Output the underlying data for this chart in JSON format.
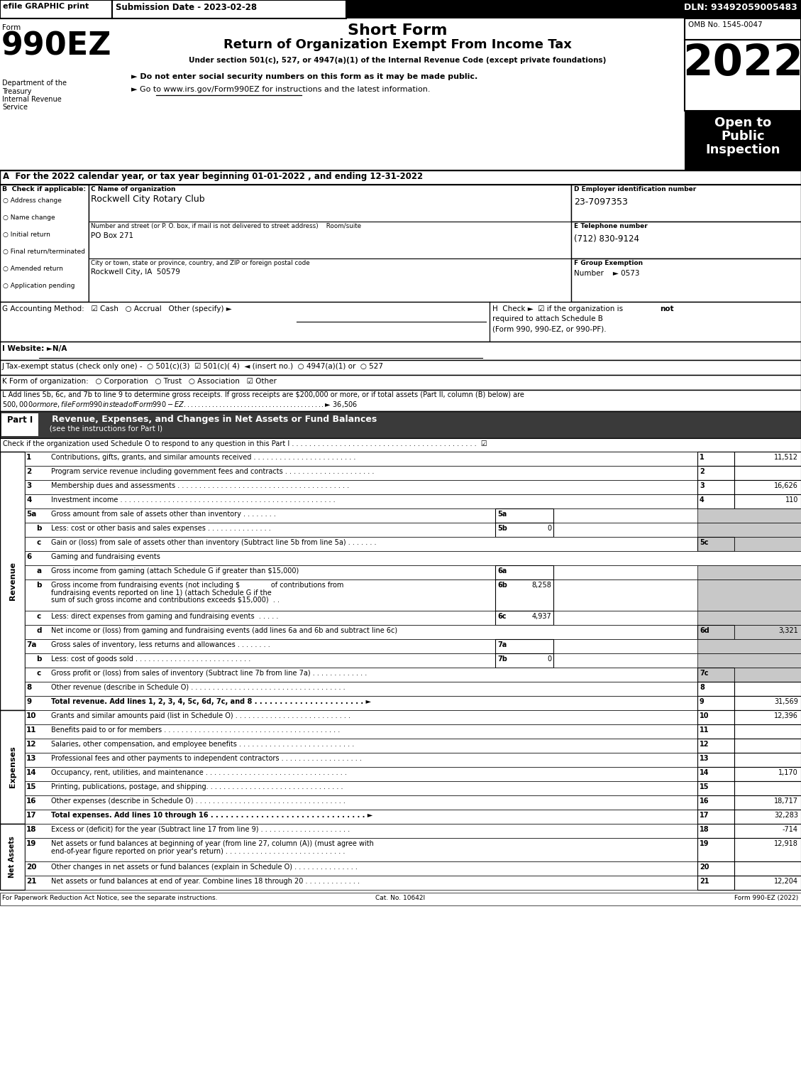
{
  "title_short": "Short Form",
  "title_long": "Return of Organization Exempt From Income Tax",
  "subtitle": "Under section 501(c), 527, or 4947(a)(1) of the Internal Revenue Code (except private foundations)",
  "bullet1": "► Do not enter social security numbers on this form as it may be made public.",
  "bullet2": "► Go to www.irs.gov/Form990EZ for instructions and the latest information.",
  "year": "2022",
  "form_num": "990EZ",
  "omb": "OMB No. 1545-0047",
  "open_to": "Open to\nPublic\nInspection",
  "efile_text": "efile GRAPHIC print",
  "submission_date": "Submission Date - 2023-02-28",
  "dln": "DLN: 93492059005483",
  "dept1": "Department of the",
  "dept2": "Treasury",
  "dept3": "Internal Revenue",
  "dept4": "Service",
  "line_A": "A  For the 2022 calendar year, or tax year beginning 01-01-2022 , and ending 12-31-2022",
  "checkboxes_B": [
    "Address change",
    "Name change",
    "Initial return",
    "Final return/terminated",
    "Amended return",
    "Application pending"
  ],
  "org_name": "Rockwell City Rotary Club",
  "label_addr": "Number and street (or P. O. box, if mail is not delivered to street address)    Room/suite",
  "addr": "PO Box 271",
  "label_city": "City or town, state or province, country, and ZIP or foreign postal code",
  "city": "Rockwell City, IA  50579",
  "label_D": "D Employer identification number",
  "ein": "23-7097353",
  "label_E": "E Telephone number",
  "phone": "(712) 830-9124",
  "label_F": "F Group Exemption",
  "group_num": "Number    ► 0573",
  "line_G": "G Accounting Method:   ☑ Cash   ○ Accrual   Other (specify) ►",
  "line_I": "I Website: ►N/A",
  "line_J": "J Tax-exempt status (check only one) -  ○ 501(c)(3)  ☑ 501(c)( 4)  ◄ (insert no.)  ○ 4947(a)(1) or  ○ 527",
  "line_K": "K Form of organization:   ○ Corporation   ○ Trust   ○ Association   ☑ Other",
  "line_L1": "L Add lines 5b, 6c, and 7b to line 9 to determine gross receipts. If gross receipts are $200,000 or more, or if total assets (Part II, column (B) below) are",
  "line_L2": "$500,000 or more, file Form 990 instead of Form 990-EZ . . . . . . . . . . . . . . . . . . . . . . . . . . . . . . . . . . . . . . . . ►$ 36,506",
  "part1_check": "Check if the organization used Schedule O to respond to any question in this Part I . . . . . . . . . . . . . . . . . . . . . . . . . . . . . . . . . . . . . . . . . . .",
  "footer1": "For Paperwork Reduction Act Notice, see the separate instructions.",
  "footer2": "Cat. No. 10642I",
  "footer3": "Form 990-EZ (2022)"
}
